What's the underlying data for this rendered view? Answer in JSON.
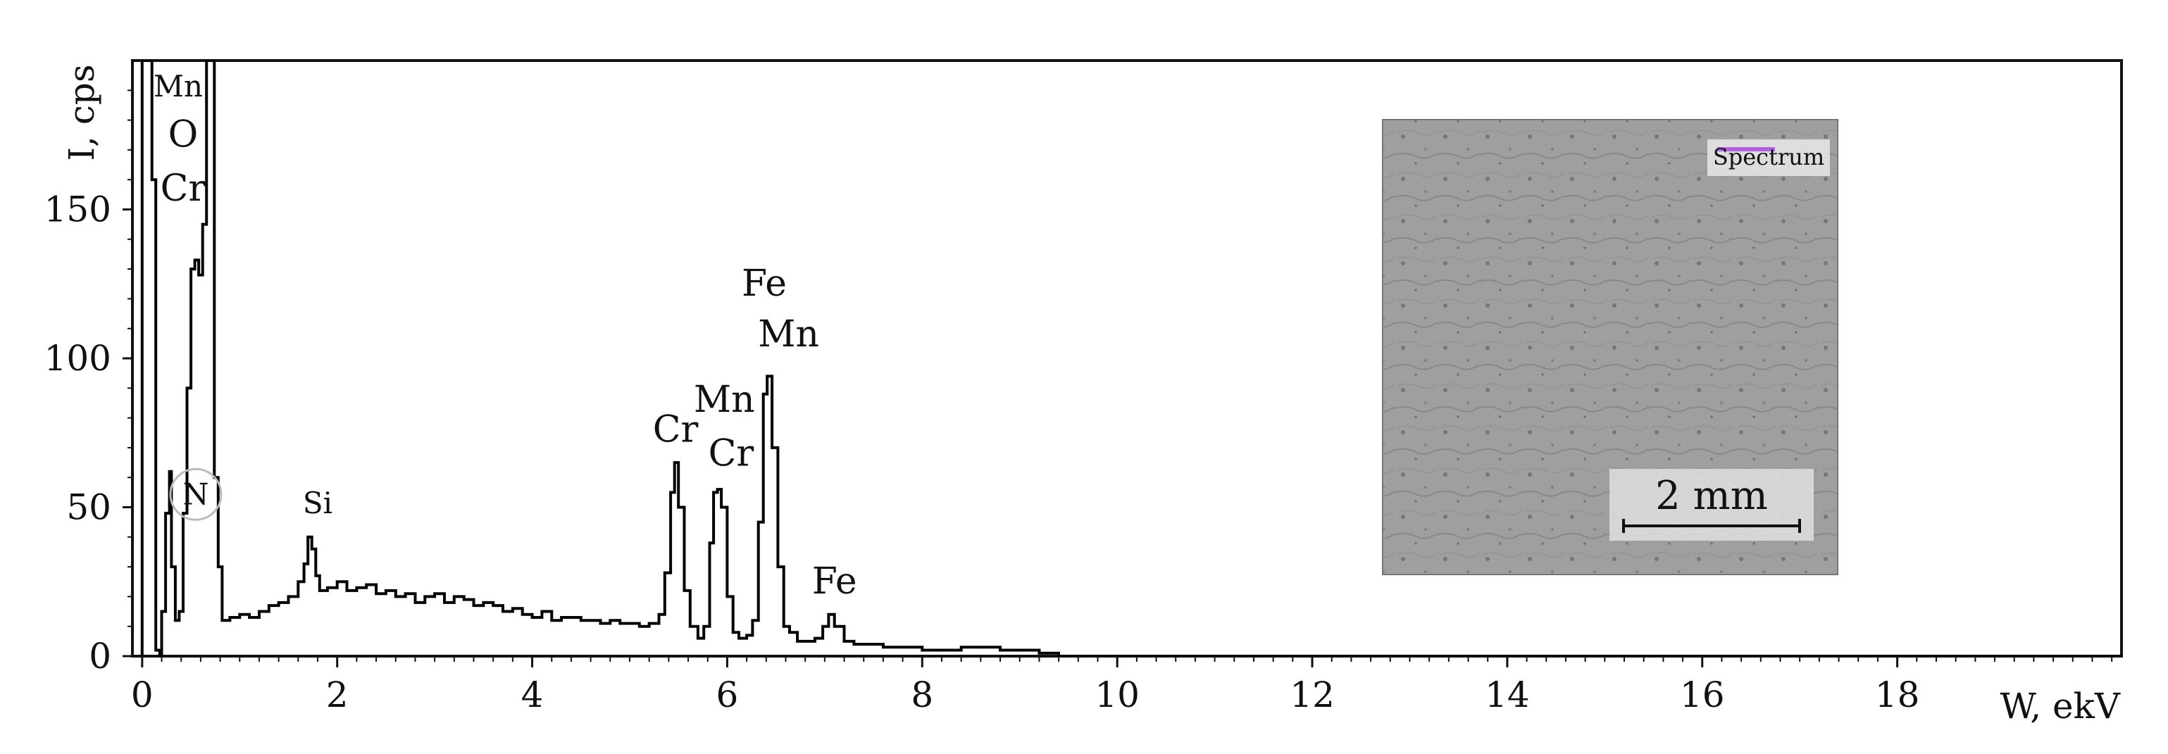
{
  "chart_data": {
    "type": "line",
    "title": "",
    "xlabel": "W, ekV",
    "ylabel": "I, cps",
    "xlim": [
      -0.1,
      20.3
    ],
    "ylim": [
      0,
      200
    ],
    "x_ticks": [
      0,
      2,
      4,
      6,
      8,
      10,
      12,
      14,
      16,
      18
    ],
    "y_ticks": [
      0,
      50,
      100,
      150
    ],
    "grid": false,
    "series": [
      {
        "values": [
          [
            -0.02,
            0
          ],
          [
            0.0,
            200
          ],
          [
            0.05,
            200
          ],
          [
            0.1,
            160
          ],
          [
            0.14,
            2
          ],
          [
            0.18,
            0
          ],
          [
            0.2,
            15
          ],
          [
            0.24,
            48
          ],
          [
            0.28,
            62
          ],
          [
            0.3,
            30
          ],
          [
            0.34,
            12
          ],
          [
            0.38,
            15
          ],
          [
            0.42,
            48
          ],
          [
            0.46,
            90
          ],
          [
            0.5,
            130
          ],
          [
            0.54,
            133
          ],
          [
            0.58,
            128
          ],
          [
            0.62,
            145
          ],
          [
            0.66,
            200
          ],
          [
            0.7,
            200
          ],
          [
            0.74,
            60
          ],
          [
            0.78,
            30
          ],
          [
            0.82,
            12
          ],
          [
            0.9,
            13
          ],
          [
            1.0,
            14
          ],
          [
            1.1,
            13
          ],
          [
            1.2,
            15
          ],
          [
            1.3,
            17
          ],
          [
            1.4,
            18
          ],
          [
            1.5,
            20
          ],
          [
            1.6,
            25
          ],
          [
            1.66,
            31
          ],
          [
            1.7,
            40
          ],
          [
            1.74,
            36
          ],
          [
            1.78,
            27
          ],
          [
            1.82,
            22
          ],
          [
            1.9,
            23
          ],
          [
            2.0,
            25
          ],
          [
            2.1,
            22
          ],
          [
            2.2,
            23
          ],
          [
            2.3,
            24
          ],
          [
            2.4,
            21
          ],
          [
            2.5,
            22
          ],
          [
            2.6,
            20
          ],
          [
            2.7,
            21
          ],
          [
            2.8,
            18
          ],
          [
            2.9,
            20
          ],
          [
            3.0,
            21
          ],
          [
            3.1,
            18
          ],
          [
            3.2,
            20
          ],
          [
            3.3,
            19
          ],
          [
            3.4,
            17
          ],
          [
            3.5,
            18
          ],
          [
            3.6,
            17
          ],
          [
            3.7,
            15
          ],
          [
            3.8,
            16
          ],
          [
            3.9,
            14
          ],
          [
            4.0,
            13
          ],
          [
            4.1,
            15
          ],
          [
            4.2,
            12
          ],
          [
            4.3,
            13
          ],
          [
            4.4,
            13
          ],
          [
            4.5,
            12
          ],
          [
            4.6,
            12
          ],
          [
            4.7,
            11
          ],
          [
            4.8,
            12
          ],
          [
            4.9,
            11
          ],
          [
            5.0,
            11
          ],
          [
            5.1,
            10
          ],
          [
            5.2,
            11
          ],
          [
            5.3,
            14
          ],
          [
            5.36,
            28
          ],
          [
            5.42,
            55
          ],
          [
            5.46,
            65
          ],
          [
            5.5,
            50
          ],
          [
            5.56,
            22
          ],
          [
            5.62,
            10
          ],
          [
            5.7,
            6
          ],
          [
            5.76,
            10
          ],
          [
            5.82,
            38
          ],
          [
            5.86,
            55
          ],
          [
            5.9,
            56
          ],
          [
            5.94,
            50
          ],
          [
            6.0,
            20
          ],
          [
            6.06,
            8
          ],
          [
            6.12,
            6
          ],
          [
            6.2,
            7
          ],
          [
            6.26,
            12
          ],
          [
            6.32,
            45
          ],
          [
            6.37,
            88
          ],
          [
            6.41,
            94
          ],
          [
            6.46,
            70
          ],
          [
            6.52,
            30
          ],
          [
            6.58,
            10
          ],
          [
            6.64,
            8
          ],
          [
            6.72,
            5
          ],
          [
            6.8,
            5
          ],
          [
            6.9,
            6
          ],
          [
            6.98,
            10
          ],
          [
            7.04,
            14
          ],
          [
            7.1,
            10
          ],
          [
            7.2,
            5
          ],
          [
            7.3,
            4
          ],
          [
            7.4,
            4
          ],
          [
            7.6,
            3
          ],
          [
            7.8,
            3
          ],
          [
            8.0,
            2
          ],
          [
            8.2,
            2
          ],
          [
            8.4,
            3
          ],
          [
            8.6,
            3
          ],
          [
            8.8,
            2
          ],
          [
            9.0,
            2
          ],
          [
            9.2,
            1
          ],
          [
            9.4,
            0
          ],
          [
            9.6,
            0
          ],
          [
            9.8,
            0
          ],
          [
            10.0,
            0
          ],
          [
            12.0,
            0
          ],
          [
            16.0,
            0
          ],
          [
            20.3,
            0
          ]
        ]
      }
    ],
    "annotations": [
      {
        "text": "Mn",
        "x": 0.37,
        "y": 188
      },
      {
        "text": "O",
        "x": 0.42,
        "y": 171
      },
      {
        "text": "Cr",
        "x": 0.42,
        "y": 153
      },
      {
        "text": "N",
        "x": 0.55,
        "y": 51
      },
      {
        "text": "Si",
        "x": 1.8,
        "y": 48
      },
      {
        "text": "Cr",
        "x": 5.47,
        "y": 72
      },
      {
        "text": "Mn",
        "x": 5.97,
        "y": 82
      },
      {
        "text": "Cr",
        "x": 6.04,
        "y": 64
      },
      {
        "text": "Fe",
        "x": 6.38,
        "y": 121
      },
      {
        "text": "Mn",
        "x": 6.63,
        "y": 104
      },
      {
        "text": "Fe",
        "x": 7.1,
        "y": 21
      }
    ]
  },
  "inset": {
    "spectrum_label": "Spectrum",
    "scale_label": "2 mm"
  }
}
